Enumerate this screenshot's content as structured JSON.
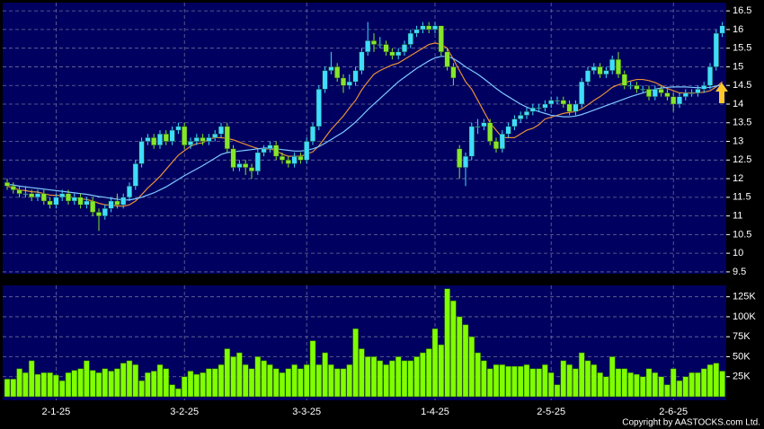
{
  "chart_data": [
    {
      "type": "candlestick",
      "candles": [
        [
          11.9,
          12.0,
          11.7,
          11.8
        ],
        [
          11.8,
          11.9,
          11.6,
          11.7
        ],
        [
          11.7,
          11.8,
          11.5,
          11.6
        ],
        [
          11.6,
          11.8,
          11.5,
          11.6
        ],
        [
          11.6,
          11.7,
          11.4,
          11.5
        ],
        [
          11.5,
          11.7,
          11.4,
          11.6
        ],
        [
          11.6,
          11.7,
          11.3,
          11.4
        ],
        [
          11.4,
          11.5,
          11.2,
          11.3
        ],
        [
          11.3,
          11.6,
          11.2,
          11.5
        ],
        [
          11.5,
          11.7,
          11.4,
          11.6
        ],
        [
          11.6,
          11.7,
          11.3,
          11.4
        ],
        [
          11.4,
          11.6,
          11.3,
          11.5
        ],
        [
          11.5,
          11.6,
          11.2,
          11.3
        ],
        [
          11.3,
          11.5,
          11.2,
          11.4
        ],
        [
          11.4,
          11.5,
          11.0,
          11.1
        ],
        [
          11.1,
          11.2,
          10.6,
          11.0
        ],
        [
          11.0,
          11.3,
          10.9,
          11.2
        ],
        [
          11.2,
          11.5,
          11.1,
          11.4
        ],
        [
          11.4,
          11.6,
          11.2,
          11.3
        ],
        [
          11.3,
          11.6,
          11.2,
          11.5
        ],
        [
          11.5,
          11.9,
          11.4,
          11.8
        ],
        [
          11.8,
          12.5,
          11.7,
          12.4
        ],
        [
          12.4,
          13.1,
          12.3,
          13.0
        ],
        [
          13.0,
          13.2,
          12.9,
          13.1
        ],
        [
          13.1,
          13.2,
          12.8,
          12.9
        ],
        [
          12.9,
          13.3,
          12.8,
          13.2
        ],
        [
          13.2,
          13.3,
          12.9,
          13.0
        ],
        [
          13.0,
          13.4,
          12.9,
          13.3
        ],
        [
          13.3,
          13.5,
          13.2,
          13.4
        ],
        [
          13.4,
          13.5,
          12.8,
          12.9
        ],
        [
          12.9,
          13.1,
          12.8,
          13.0
        ],
        [
          13.0,
          13.2,
          12.9,
          13.1
        ],
        [
          13.1,
          13.2,
          12.9,
          13.0
        ],
        [
          13.0,
          13.2,
          12.9,
          13.1
        ],
        [
          13.1,
          13.3,
          13.0,
          13.2
        ],
        [
          13.2,
          13.5,
          13.1,
          13.4
        ],
        [
          13.4,
          13.5,
          12.7,
          12.8
        ],
        [
          12.8,
          12.9,
          12.2,
          12.3
        ],
        [
          12.3,
          12.5,
          12.2,
          12.4
        ],
        [
          12.4,
          12.5,
          12.1,
          12.3
        ],
        [
          12.3,
          12.4,
          12.0,
          12.2
        ],
        [
          12.2,
          12.8,
          12.1,
          12.7
        ],
        [
          12.7,
          12.9,
          12.6,
          12.8
        ],
        [
          12.8,
          13.0,
          12.7,
          12.9
        ],
        [
          12.9,
          13.0,
          12.5,
          12.6
        ],
        [
          12.6,
          12.7,
          12.4,
          12.5
        ],
        [
          12.5,
          12.6,
          12.3,
          12.4
        ],
        [
          12.4,
          12.7,
          12.3,
          12.6
        ],
        [
          12.6,
          12.7,
          12.4,
          12.5
        ],
        [
          12.5,
          13.1,
          12.4,
          13.0
        ],
        [
          13.0,
          13.5,
          12.9,
          13.4
        ],
        [
          13.4,
          14.5,
          13.3,
          14.4
        ],
        [
          14.4,
          15.0,
          14.3,
          14.9
        ],
        [
          14.9,
          15.4,
          14.8,
          15.0
        ],
        [
          15.0,
          15.1,
          14.6,
          14.7
        ],
        [
          14.7,
          14.8,
          14.3,
          14.5
        ],
        [
          14.5,
          14.8,
          14.4,
          14.6
        ],
        [
          14.6,
          15.0,
          14.5,
          14.9
        ],
        [
          14.9,
          15.5,
          14.8,
          15.4
        ],
        [
          15.4,
          16.2,
          15.3,
          15.7
        ],
        [
          15.7,
          15.9,
          15.4,
          15.6
        ],
        [
          15.6,
          15.8,
          15.5,
          15.6
        ],
        [
          15.6,
          15.7,
          15.3,
          15.4
        ],
        [
          15.4,
          15.5,
          15.2,
          15.3
        ],
        [
          15.3,
          15.5,
          15.2,
          15.4
        ],
        [
          15.4,
          15.7,
          15.3,
          15.6
        ],
        [
          15.6,
          16.0,
          15.5,
          15.9
        ],
        [
          15.9,
          16.1,
          15.8,
          16.0
        ],
        [
          16.0,
          16.2,
          15.9,
          16.1
        ],
        [
          16.1,
          16.2,
          15.9,
          16.0
        ],
        [
          16.0,
          16.2,
          15.9,
          16.1
        ],
        [
          16.1,
          16.1,
          15.3,
          15.4
        ],
        [
          15.4,
          15.5,
          14.9,
          15.0
        ],
        [
          15.0,
          15.1,
          14.5,
          14.7
        ],
        [
          12.8,
          12.9,
          12.0,
          12.3
        ],
        [
          12.3,
          12.7,
          11.8,
          12.6
        ],
        [
          12.6,
          13.5,
          12.5,
          13.4
        ],
        [
          13.4,
          13.6,
          13.2,
          13.4
        ],
        [
          13.4,
          13.6,
          13.3,
          13.5
        ],
        [
          13.5,
          13.6,
          12.9,
          13.0
        ],
        [
          13.0,
          13.1,
          12.7,
          12.8
        ],
        [
          12.8,
          13.3,
          12.7,
          13.2
        ],
        [
          13.2,
          13.5,
          13.1,
          13.4
        ],
        [
          13.4,
          13.7,
          13.3,
          13.6
        ],
        [
          13.6,
          13.8,
          13.5,
          13.7
        ],
        [
          13.7,
          13.9,
          13.6,
          13.8
        ],
        [
          13.8,
          14.0,
          13.7,
          13.9
        ],
        [
          13.9,
          14.0,
          13.8,
          13.9
        ],
        [
          13.9,
          14.1,
          13.8,
          14.0
        ],
        [
          14.0,
          14.2,
          13.9,
          14.1
        ],
        [
          14.1,
          14.2,
          14.0,
          14.1
        ],
        [
          14.1,
          14.2,
          13.9,
          14.0
        ],
        [
          14.0,
          14.1,
          13.7,
          13.8
        ],
        [
          13.8,
          14.1,
          13.7,
          14.0
        ],
        [
          14.0,
          14.7,
          13.9,
          14.6
        ],
        [
          14.6,
          15.0,
          14.5,
          14.9
        ],
        [
          14.9,
          15.1,
          14.8,
          15.0
        ],
        [
          15.0,
          15.1,
          14.7,
          14.8
        ],
        [
          14.8,
          15.0,
          14.7,
          14.9
        ],
        [
          14.9,
          15.3,
          14.8,
          15.2
        ],
        [
          15.2,
          15.4,
          14.7,
          14.8
        ],
        [
          14.8,
          14.9,
          14.4,
          14.5
        ],
        [
          14.5,
          14.6,
          14.4,
          14.5
        ],
        [
          14.5,
          14.6,
          14.3,
          14.4
        ],
        [
          14.4,
          14.5,
          14.3,
          14.4
        ],
        [
          14.4,
          14.5,
          14.1,
          14.2
        ],
        [
          14.2,
          14.5,
          14.1,
          14.4
        ],
        [
          14.4,
          14.5,
          14.2,
          14.3
        ],
        [
          14.3,
          14.4,
          14.1,
          14.2
        ],
        [
          14.2,
          14.3,
          13.8,
          14.0
        ],
        [
          14.0,
          14.3,
          13.9,
          14.2
        ],
        [
          14.2,
          14.4,
          14.1,
          14.3
        ],
        [
          14.3,
          14.4,
          14.2,
          14.3
        ],
        [
          14.3,
          14.5,
          14.2,
          14.4
        ],
        [
          14.4,
          14.6,
          14.3,
          14.5
        ],
        [
          14.5,
          15.1,
          14.4,
          15.0
        ],
        [
          15.0,
          16.0,
          14.9,
          15.9
        ],
        [
          15.9,
          16.2,
          15.8,
          16.1
        ]
      ],
      "up_color": "#3fdcff",
      "down_color": "#86e62a",
      "ma": [
        {
          "color": "#e89038",
          "values": [
            11.8,
            11.75,
            11.7,
            11.68,
            11.65,
            11.64,
            11.6,
            11.56,
            11.55,
            11.55,
            11.51,
            11.49,
            11.46,
            11.44,
            11.4,
            11.34,
            11.3,
            11.29,
            11.27,
            11.26,
            11.3,
            11.4,
            11.57,
            11.75,
            11.9,
            12.06,
            12.25,
            12.44,
            12.63,
            12.75,
            12.87,
            12.94,
            12.96,
            13.06,
            13.1,
            13.1,
            13.08,
            13.04,
            12.98,
            12.92,
            12.86,
            12.81,
            12.8,
            12.8,
            12.75,
            12.66,
            12.6,
            12.6,
            12.6,
            12.66,
            12.72,
            12.88,
            13.1,
            13.32,
            13.5,
            13.68,
            13.9,
            14.1,
            14.38,
            14.6,
            14.8,
            14.9,
            14.98,
            15.05,
            15.1,
            15.2,
            15.3,
            15.4,
            15.5,
            15.6,
            15.64,
            15.6,
            15.5,
            15.2,
            14.9,
            14.6,
            14.4,
            14.1,
            13.8,
            13.5,
            13.3,
            13.1,
            13.1,
            13.1,
            13.2,
            13.3,
            13.35,
            13.45,
            13.6,
            13.65,
            13.7,
            13.75,
            13.78,
            13.8,
            13.87,
            13.98,
            14.1,
            14.2,
            14.32,
            14.45,
            14.52,
            14.57,
            14.62,
            14.66,
            14.66,
            14.63,
            14.58,
            14.5,
            14.42,
            14.36,
            14.3,
            14.3,
            14.3,
            14.3,
            14.32,
            14.36,
            14.46,
            14.6
          ]
        },
        {
          "color": "#7ec8ff",
          "values": [
            11.85,
            11.83,
            11.8,
            11.78,
            11.76,
            11.74,
            11.72,
            11.7,
            11.68,
            11.66,
            11.64,
            11.62,
            11.6,
            11.58,
            11.55,
            11.52,
            11.5,
            11.47,
            11.45,
            11.43,
            11.43,
            11.46,
            11.5,
            11.56,
            11.62,
            11.7,
            11.78,
            11.88,
            11.98,
            12.08,
            12.17,
            12.26,
            12.35,
            12.45,
            12.55,
            12.65,
            12.7,
            12.72,
            12.74,
            12.76,
            12.78,
            12.8,
            12.82,
            12.82,
            12.8,
            12.78,
            12.76,
            12.74,
            12.74,
            12.76,
            12.8,
            12.86,
            12.95,
            13.05,
            13.15,
            13.25,
            13.38,
            13.52,
            13.68,
            13.85,
            14.0,
            14.15,
            14.3,
            14.45,
            14.6,
            14.72,
            14.84,
            14.96,
            15.06,
            15.16,
            15.24,
            15.28,
            15.28,
            15.22,
            15.12,
            15.0,
            14.9,
            14.8,
            14.68,
            14.55,
            14.42,
            14.3,
            14.2,
            14.1,
            14.0,
            13.92,
            13.85,
            13.8,
            13.75,
            13.7,
            13.68,
            13.66,
            13.66,
            13.68,
            13.72,
            13.78,
            13.84,
            13.9,
            13.96,
            14.02,
            14.08,
            14.14,
            14.2,
            14.25,
            14.3,
            14.35,
            14.4,
            14.43,
            14.45,
            14.46,
            14.46,
            14.46,
            14.45,
            14.44,
            14.44,
            14.45,
            14.48,
            14.52
          ]
        }
      ],
      "ylim": [
        9.45,
        16.72
      ],
      "yticks": [
        9.5,
        10,
        10.5,
        11,
        11.5,
        12,
        12.5,
        13,
        13.5,
        14,
        14.5,
        15,
        15.5,
        16,
        16.5
      ],
      "grid": true
    },
    {
      "type": "bar",
      "values": [
        22000,
        22000,
        35000,
        30000,
        45000,
        28000,
        30000,
        30000,
        27000,
        20000,
        30000,
        33000,
        35000,
        45000,
        33000,
        30000,
        35000,
        32000,
        35000,
        42000,
        45000,
        40000,
        20000,
        30000,
        32000,
        40000,
        35000,
        15000,
        10000,
        25000,
        32000,
        28000,
        30000,
        35000,
        35000,
        40000,
        60000,
        50000,
        55000,
        40000,
        35000,
        50000,
        45000,
        40000,
        35000,
        30000,
        35000,
        40000,
        35000,
        40000,
        70000,
        40000,
        55000,
        40000,
        35000,
        35000,
        40000,
        85000,
        60000,
        50000,
        50000,
        45000,
        40000,
        45000,
        50000,
        45000,
        45000,
        50000,
        55000,
        60000,
        85000,
        65000,
        135000,
        120000,
        100000,
        90000,
        75000,
        55000,
        45000,
        35000,
        40000,
        40000,
        38000,
        38000,
        38000,
        40000,
        35000,
        35000,
        40000,
        30000,
        15000,
        45000,
        40000,
        35000,
        55000,
        45000,
        40000,
        30000,
        25000,
        50000,
        35000,
        35000,
        30000,
        28000,
        25000,
        35000,
        30000,
        25000,
        15000,
        35000,
        20000,
        25000,
        30000,
        30000,
        35000,
        40000,
        42000,
        32000
      ],
      "color": "#80ff00",
      "ylim": [
        0,
        137000
      ],
      "yticks": [
        {
          "value": 25000,
          "label": "25K"
        },
        {
          "value": 50000,
          "label": "50K"
        },
        {
          "value": 75000,
          "label": "75K"
        },
        {
          "value": 100000,
          "label": "100K"
        },
        {
          "value": 125000,
          "label": "125K"
        }
      ],
      "xticks": [
        {
          "value": 8,
          "label": "2-1-25"
        },
        {
          "value": 29,
          "label": "3-2-25"
        },
        {
          "value": 49,
          "label": "3-3-25"
        },
        {
          "value": 70,
          "label": "1-4-25"
        },
        {
          "value": 89,
          "label": "2-5-25"
        },
        {
          "value": 109,
          "label": "2-6-25"
        }
      ],
      "grid": true
    }
  ],
  "copyright": "Copyright by AASTOCKS.com Ltd."
}
